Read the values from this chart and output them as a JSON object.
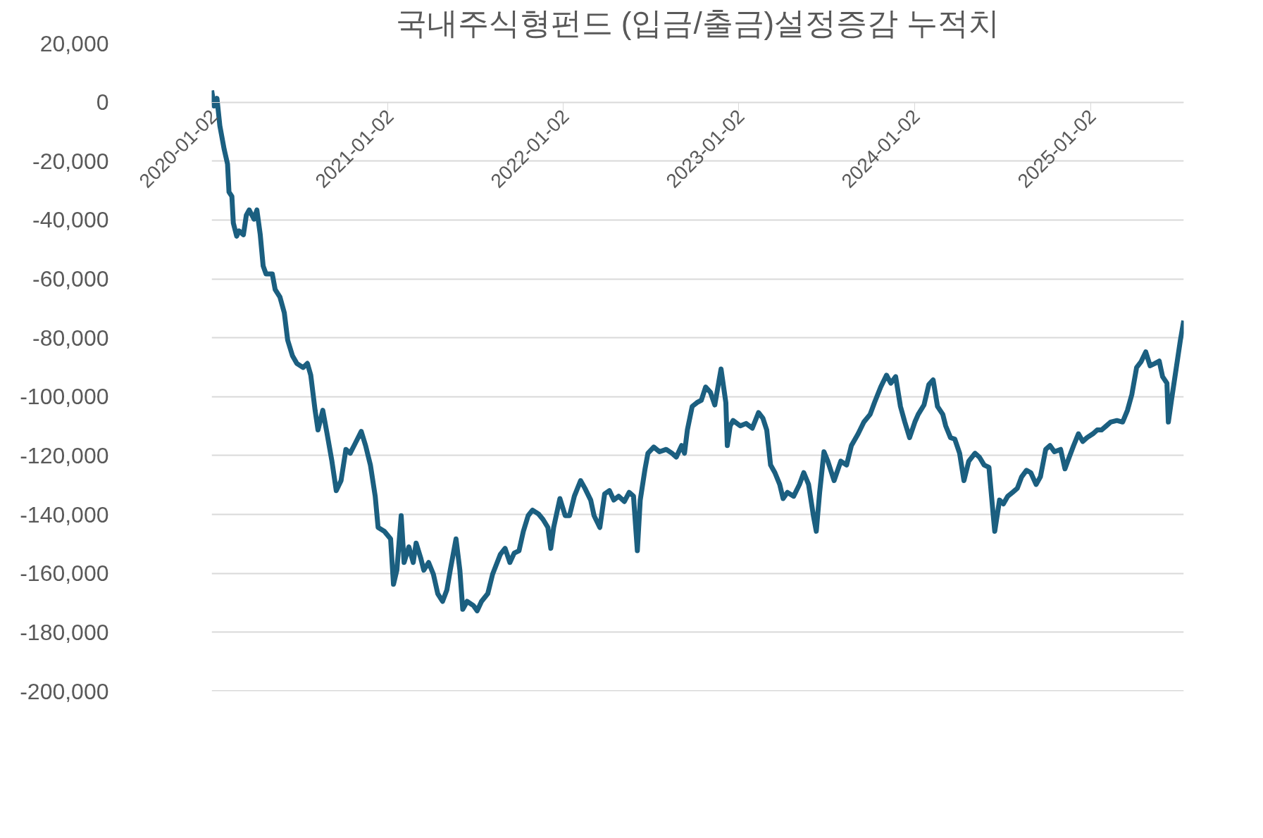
{
  "chart_data": {
    "type": "line",
    "title": "국내주식형펀드 (입금/출금)설정증감 누적치",
    "x": [
      "2020-01-02",
      "2020-01-07",
      "2020-01-13",
      "2020-01-19",
      "2020-01-28",
      "2020-02-04",
      "2020-02-07",
      "2020-02-13",
      "2020-02-16",
      "2020-02-23",
      "2020-02-28",
      "2020-03-08",
      "2020-03-14",
      "2020-03-20",
      "2020-03-30",
      "2020-04-05",
      "2020-04-12",
      "2020-04-18",
      "2020-04-24",
      "2020-05-07",
      "2020-05-13",
      "2020-05-23",
      "2020-06-01",
      "2020-06-08",
      "2020-06-18",
      "2020-06-27",
      "2020-07-10",
      "2020-07-19",
      "2020-07-26",
      "2020-08-04",
      "2020-08-10",
      "2020-08-20",
      "2020-08-29",
      "2020-09-08",
      "2020-09-17",
      "2020-09-27",
      "2020-10-07",
      "2020-10-16",
      "2020-10-26",
      "2020-11-08",
      "2020-11-17",
      "2020-11-27",
      "2020-12-07",
      "2020-12-13",
      "2020-12-26",
      "2021-01-08",
      "2021-01-14",
      "2021-01-21",
      "2021-01-30",
      "2021-02-05",
      "2021-02-15",
      "2021-02-24",
      "2021-03-02",
      "2021-03-12",
      "2021-03-18",
      "2021-03-28",
      "2021-04-07",
      "2021-04-16",
      "2021-04-26",
      "2021-05-05",
      "2021-05-12",
      "2021-05-24",
      "2021-06-01",
      "2021-06-07",
      "2021-06-16",
      "2021-06-29",
      "2021-07-07",
      "2021-07-16",
      "2021-07-29",
      "2021-08-08",
      "2021-08-24",
      "2021-09-03",
      "2021-09-13",
      "2021-09-22",
      "2021-10-02",
      "2021-10-11",
      "2021-10-21",
      "2021-10-30",
      "2021-11-12",
      "2021-11-21",
      "2021-12-01",
      "2021-12-07",
      "2021-12-13",
      "2021-12-26",
      "2022-01-06",
      "2022-01-15",
      "2022-01-25",
      "2022-02-07",
      "2022-02-16",
      "2022-02-28",
      "2022-03-07",
      "2022-03-19",
      "2022-03-29",
      "2022-04-08",
      "2022-04-17",
      "2022-04-27",
      "2022-05-09",
      "2022-05-19",
      "2022-05-28",
      "2022-06-05",
      "2022-06-11",
      "2022-06-21",
      "2022-06-27",
      "2022-07-09",
      "2022-07-21",
      "2022-08-04",
      "2022-08-16",
      "2022-08-25",
      "2022-09-05",
      "2022-09-11",
      "2022-09-17",
      "2022-09-27",
      "2022-10-07",
      "2022-10-16",
      "2022-10-25",
      "2022-11-04",
      "2022-11-13",
      "2022-11-26",
      "2022-12-06",
      "2022-12-09",
      "2022-12-15",
      "2022-12-21",
      "2023-01-05",
      "2023-01-17",
      "2023-01-30",
      "2023-02-12",
      "2023-02-21",
      "2023-03-01",
      "2023-03-09",
      "2023-03-18",
      "2023-03-28",
      "2023-04-04",
      "2023-04-13",
      "2023-04-26",
      "2023-05-08",
      "2023-05-17",
      "2023-05-27",
      "2023-06-06",
      "2023-06-12",
      "2023-06-19",
      "2023-06-28",
      "2023-07-06",
      "2023-07-19",
      "2023-08-02",
      "2023-08-14",
      "2023-08-24",
      "2023-09-07",
      "2023-09-19",
      "2023-10-02",
      "2023-10-11",
      "2023-10-24",
      "2023-11-05",
      "2023-11-14",
      "2023-11-24",
      "2023-12-04",
      "2023-12-13",
      "2023-12-23",
      "2024-01-03",
      "2024-01-10",
      "2024-01-22",
      "2024-02-01",
      "2024-02-10",
      "2024-02-19",
      "2024-03-01",
      "2024-03-07",
      "2024-03-17",
      "2024-03-26",
      "2024-04-05",
      "2024-04-14",
      "2024-04-24",
      "2024-05-07",
      "2024-05-16",
      "2024-05-26",
      "2024-06-05",
      "2024-06-14",
      "2024-06-17",
      "2024-06-27",
      "2024-07-05",
      "2024-07-14",
      "2024-07-24",
      "2024-08-03",
      "2024-08-12",
      "2024-08-22",
      "2024-08-31",
      "2024-09-11",
      "2024-09-20",
      "2024-10-01",
      "2024-10-10",
      "2024-10-19",
      "2024-11-01",
      "2024-11-10",
      "2024-11-19",
      "2024-11-28",
      "2024-12-08",
      "2024-12-17",
      "2024-12-26",
      "2025-01-07",
      "2025-01-16",
      "2025-01-25",
      "2025-02-04",
      "2025-02-13",
      "2025-02-26",
      "2025-03-10",
      "2025-03-20",
      "2025-03-29",
      "2025-04-08",
      "2025-04-17",
      "2025-04-27",
      "2025-05-06",
      "2025-05-16",
      "2025-05-25",
      "2025-06-01",
      "2025-06-10",
      "2025-06-13",
      "2025-06-20",
      "2025-06-26",
      "2025-07-02",
      "2025-07-08",
      "2025-07-15"
    ],
    "series": [
      {
        "color": "#1b5f80",
        "values": [
          4000,
          -1300,
          1300,
          -8000,
          -16000,
          -21000,
          -30500,
          -32000,
          -41000,
          -45500,
          -43700,
          -45000,
          -38400,
          -36600,
          -39700,
          -36600,
          -45000,
          -55600,
          -58300,
          -58300,
          -63600,
          -66200,
          -71500,
          -80800,
          -86100,
          -88700,
          -90100,
          -88700,
          -92700,
          -104600,
          -111300,
          -104600,
          -112600,
          -121900,
          -131900,
          -128500,
          -117900,
          -119200,
          -116000,
          -111800,
          -116600,
          -123200,
          -133800,
          -144400,
          -145700,
          -148300,
          -163700,
          -158900,
          -140400,
          -156300,
          -151000,
          -156300,
          -149700,
          -155000,
          -158900,
          -156300,
          -160300,
          -166900,
          -169500,
          -165600,
          -158900,
          -148300,
          -158900,
          -172200,
          -169500,
          -170900,
          -172700,
          -169500,
          -166900,
          -160300,
          -153600,
          -151500,
          -156300,
          -153100,
          -152300,
          -145700,
          -140400,
          -138500,
          -139900,
          -141700,
          -144400,
          -151500,
          -144400,
          -134600,
          -140400,
          -140400,
          -133800,
          -128500,
          -131100,
          -135100,
          -140400,
          -144400,
          -133000,
          -131900,
          -135100,
          -133800,
          -135600,
          -132500,
          -133800,
          -152300,
          -135100,
          -124500,
          -119200,
          -117100,
          -118700,
          -117900,
          -119200,
          -120500,
          -116600,
          -119200,
          -111300,
          -103300,
          -102000,
          -101200,
          -96700,
          -98500,
          -102800,
          -90600,
          -102000,
          -116600,
          -109900,
          -108100,
          -109900,
          -109100,
          -110700,
          -105400,
          -107300,
          -111300,
          -123200,
          -125800,
          -129800,
          -134600,
          -132500,
          -133800,
          -129800,
          -125800,
          -129800,
          -140400,
          -145700,
          -132500,
          -118700,
          -121900,
          -128500,
          -121900,
          -123200,
          -116600,
          -112600,
          -108600,
          -106000,
          -102000,
          -96700,
          -92700,
          -95400,
          -93200,
          -103300,
          -108600,
          -113900,
          -108600,
          -106000,
          -102800,
          -95900,
          -94300,
          -103300,
          -106000,
          -109900,
          -113900,
          -114400,
          -119200,
          -128500,
          -121900,
          -119200,
          -120500,
          -123200,
          -124000,
          -140400,
          -145700,
          -135100,
          -136400,
          -133800,
          -132500,
          -131100,
          -127200,
          -125000,
          -125800,
          -129800,
          -127200,
          -117900,
          -116600,
          -118700,
          -117900,
          -124500,
          -120500,
          -116600,
          -112600,
          -115200,
          -113900,
          -112600,
          -111300,
          -111300,
          -109900,
          -108600,
          -108100,
          -108600,
          -104600,
          -99300,
          -90100,
          -88200,
          -84800,
          -89500,
          -88700,
          -87900,
          -93200,
          -95400,
          -108600,
          -100600,
          -94000,
          -87400,
          -80800,
          -74200
        ]
      }
    ],
    "xlim": [
      "2020-01-02",
      "2025-07-15"
    ],
    "xticks": [
      "2020-01-02",
      "2021-01-02",
      "2022-01-02",
      "2023-01-02",
      "2024-01-02",
      "2025-01-02"
    ],
    "ylim": [
      -200000,
      20000
    ],
    "yticks": [
      {
        "value": -200000,
        "label": "-200,000"
      },
      {
        "value": -180000,
        "label": "-180,000"
      },
      {
        "value": -160000,
        "label": "-160,000"
      },
      {
        "value": -140000,
        "label": "-140,000"
      },
      {
        "value": -120000,
        "label": "-120,000"
      },
      {
        "value": -100000,
        "label": "-100,000"
      },
      {
        "value": -80000,
        "label": "-80,000"
      },
      {
        "value": -60000,
        "label": "-60,000"
      },
      {
        "value": -40000,
        "label": "-40,000"
      },
      {
        "value": -20000,
        "label": "-20,000"
      },
      {
        "value": 0,
        "label": "0"
      },
      {
        "value": 20000,
        "label": "20,000"
      }
    ],
    "grid": "y"
  }
}
